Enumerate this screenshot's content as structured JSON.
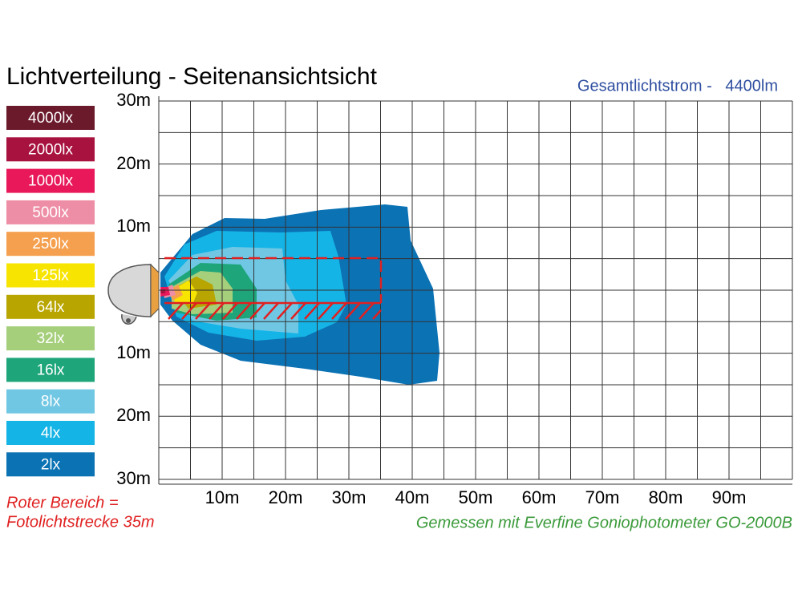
{
  "title": "Lichtverteilung - Seitenansichtsicht",
  "total_flux": "Gesamtlichtstrom -   4400lm",
  "legend": [
    {
      "label": "4000lx",
      "color": "#6b1a2c"
    },
    {
      "label": "2000lx",
      "color": "#a8123f"
    },
    {
      "label": "1000lx",
      "color": "#e8185a"
    },
    {
      "label": "500lx",
      "color": "#ee8ea6"
    },
    {
      "label": "250lx",
      "color": "#f5a04f"
    },
    {
      "label": "125lx",
      "color": "#f7e400"
    },
    {
      "label": "64lx",
      "color": "#b8a500"
    },
    {
      "label": "32lx",
      "color": "#a6cf7c"
    },
    {
      "label": "16lx",
      "color": "#1ea67a"
    },
    {
      "label": "8lx",
      "color": "#70c7e4"
    },
    {
      "label": "4lx",
      "color": "#15b4e6"
    },
    {
      "label": "2lx",
      "color": "#0b72b4"
    }
  ],
  "y_axis_labels": [
    "30m",
    "20m",
    "10m",
    "10m",
    "20m",
    "30m"
  ],
  "x_axis_labels": [
    "10m",
    "20m",
    "30m",
    "40m",
    "50m",
    "60m",
    "70m",
    "80m",
    "90m"
  ],
  "notes": {
    "red_area": [
      "Roter Bereich =",
      "Fotolichtstrecke 35m"
    ],
    "measurement": "Gemessen mit Everfine Goniophotometer GO-2000B"
  }
}
